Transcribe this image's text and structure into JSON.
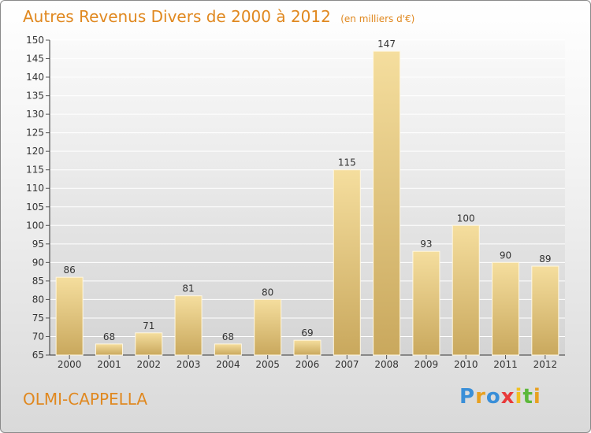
{
  "title": {
    "main": "Autres Revenus Divers de 2000 à 2012",
    "unit": "(en milliers d'€)"
  },
  "place": "OLMI-CAPPELLA",
  "logo": {
    "letters": [
      "P",
      "r",
      "o",
      "x",
      "i",
      "t",
      "i"
    ],
    "colors": [
      "#3a8fd8",
      "#e8a020",
      "#3a8fd8",
      "#e83a3a",
      "#f0c020",
      "#5cb83a",
      "#e8a020"
    ]
  },
  "chart_data": {
    "type": "bar",
    "categories": [
      "2000",
      "2001",
      "2002",
      "2003",
      "2004",
      "2005",
      "2006",
      "2007",
      "2008",
      "2009",
      "2010",
      "2011",
      "2012"
    ],
    "values": [
      86,
      68,
      71,
      81,
      68,
      80,
      69,
      115,
      147,
      93,
      100,
      90,
      89
    ],
    "ylim": [
      65,
      150
    ],
    "yticks": [
      65,
      70,
      75,
      80,
      85,
      90,
      95,
      100,
      105,
      110,
      115,
      120,
      125,
      130,
      135,
      140,
      145,
      150
    ],
    "grid": true,
    "bar_color": "#e6c67f",
    "data_labels": true
  }
}
